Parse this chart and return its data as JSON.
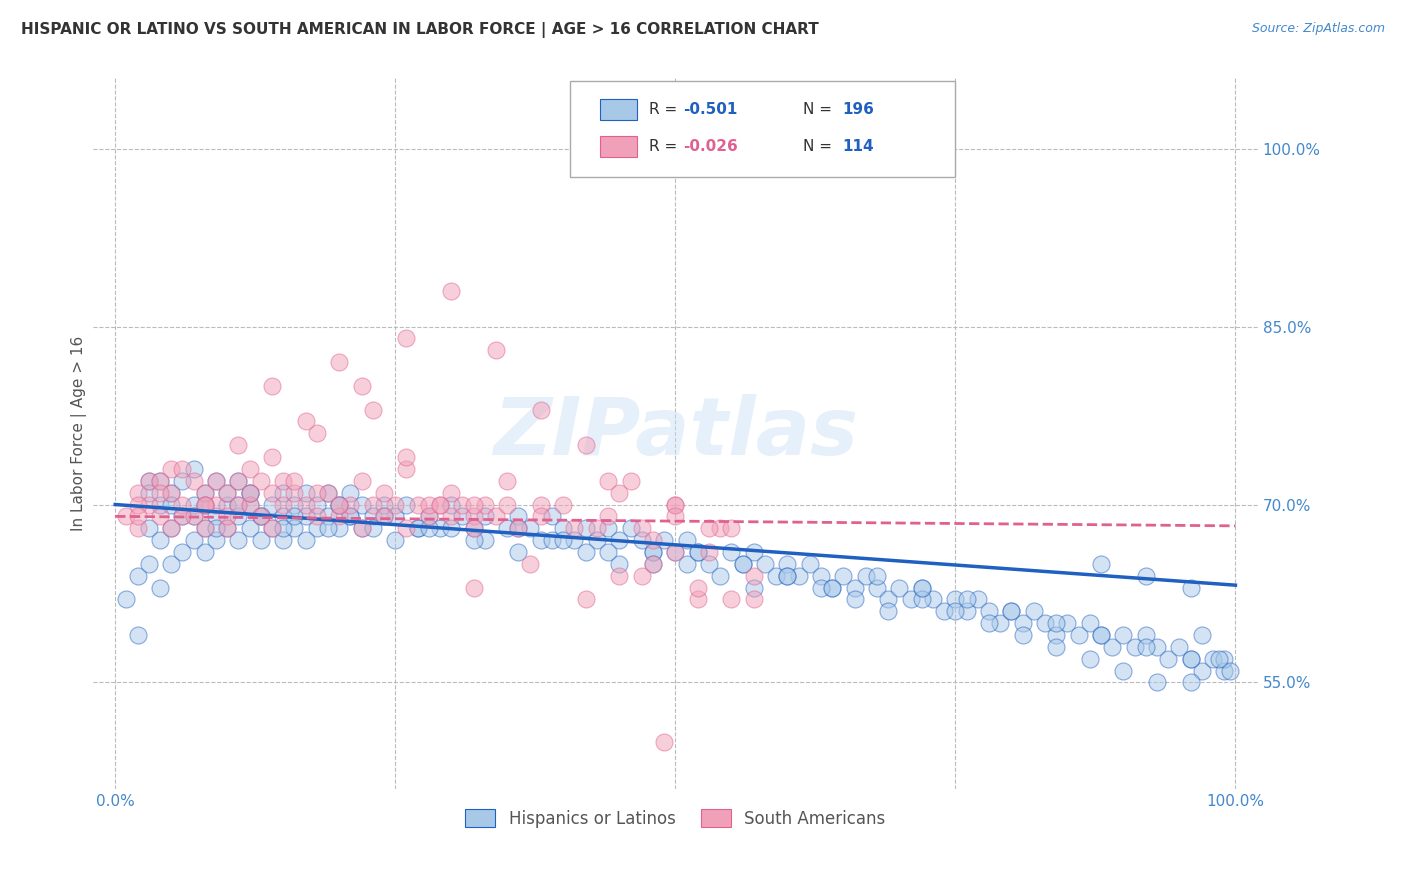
{
  "title": "HISPANIC OR LATINO VS SOUTH AMERICAN IN LABOR FORCE | AGE > 16 CORRELATION CHART",
  "source": "Source: ZipAtlas.com",
  "ylabel": "In Labor Force | Age > 16",
  "watermark": "ZIPatlas",
  "legend_blue_R_val": "-0.501",
  "legend_blue_N_val": "196",
  "legend_pink_R_val": "-0.026",
  "legend_pink_N_val": "114",
  "blue_label": "Hispanics or Latinos",
  "pink_label": "South Americans",
  "xlim": [
    -0.02,
    1.02
  ],
  "ylim": [
    0.46,
    1.06
  ],
  "ytick_labels_right": [
    "55.0%",
    "70.0%",
    "85.0%",
    "100.0%"
  ],
  "ytick_vals_right": [
    0.55,
    0.7,
    0.85,
    1.0
  ],
  "blue_color": "#A8C8E8",
  "blue_line_color": "#2060C0",
  "pink_color": "#F0A0B8",
  "pink_line_color": "#E06090",
  "bg_color": "#FFFFFF",
  "grid_color": "#BBBBBB",
  "title_color": "#333333",
  "axis_label_color": "#555555",
  "tick_color": "#4488CC",
  "blue_trend_y_start": 0.7,
  "blue_trend_y_end": 0.632,
  "pink_trend_y_start": 0.69,
  "pink_trend_y_end": 0.682,
  "blue_scatter_x": [
    0.01,
    0.02,
    0.02,
    0.03,
    0.03,
    0.03,
    0.04,
    0.04,
    0.04,
    0.05,
    0.05,
    0.05,
    0.06,
    0.06,
    0.06,
    0.07,
    0.07,
    0.07,
    0.08,
    0.08,
    0.08,
    0.09,
    0.09,
    0.09,
    0.1,
    0.1,
    0.1,
    0.11,
    0.11,
    0.11,
    0.12,
    0.12,
    0.12,
    0.13,
    0.13,
    0.14,
    0.14,
    0.15,
    0.15,
    0.15,
    0.16,
    0.16,
    0.17,
    0.17,
    0.18,
    0.18,
    0.19,
    0.19,
    0.2,
    0.2,
    0.21,
    0.21,
    0.22,
    0.22,
    0.23,
    0.24,
    0.25,
    0.26,
    0.27,
    0.28,
    0.29,
    0.3,
    0.31,
    0.32,
    0.33,
    0.35,
    0.36,
    0.37,
    0.38,
    0.39,
    0.4,
    0.41,
    0.42,
    0.43,
    0.44,
    0.45,
    0.46,
    0.47,
    0.48,
    0.49,
    0.5,
    0.51,
    0.52,
    0.53,
    0.55,
    0.56,
    0.57,
    0.58,
    0.59,
    0.6,
    0.61,
    0.62,
    0.63,
    0.64,
    0.65,
    0.66,
    0.67,
    0.68,
    0.69,
    0.7,
    0.71,
    0.72,
    0.73,
    0.74,
    0.75,
    0.76,
    0.77,
    0.78,
    0.79,
    0.8,
    0.81,
    0.82,
    0.83,
    0.84,
    0.85,
    0.86,
    0.87,
    0.88,
    0.89,
    0.9,
    0.91,
    0.92,
    0.93,
    0.94,
    0.95,
    0.96,
    0.97,
    0.98,
    0.99,
    0.99,
    0.03,
    0.05,
    0.07,
    0.09,
    0.11,
    0.13,
    0.15,
    0.17,
    0.19,
    0.21,
    0.23,
    0.25,
    0.27,
    0.3,
    0.33,
    0.36,
    0.39,
    0.42,
    0.45,
    0.48,
    0.51,
    0.54,
    0.57,
    0.6,
    0.63,
    0.66,
    0.69,
    0.72,
    0.75,
    0.78,
    0.81,
    0.84,
    0.87,
    0.9,
    0.93,
    0.96,
    0.04,
    0.08,
    0.12,
    0.16,
    0.2,
    0.24,
    0.28,
    0.32,
    0.36,
    0.4,
    0.44,
    0.48,
    0.52,
    0.56,
    0.6,
    0.64,
    0.68,
    0.72,
    0.76,
    0.8,
    0.84,
    0.88,
    0.92,
    0.96,
    0.995,
    0.985,
    0.97,
    0.96,
    0.92,
    0.88
  ],
  "blue_scatter_y": [
    0.62,
    0.59,
    0.64,
    0.65,
    0.68,
    0.72,
    0.63,
    0.67,
    0.7,
    0.65,
    0.68,
    0.71,
    0.66,
    0.69,
    0.72,
    0.67,
    0.7,
    0.73,
    0.68,
    0.71,
    0.66,
    0.69,
    0.72,
    0.67,
    0.7,
    0.68,
    0.71,
    0.69,
    0.72,
    0.67,
    0.7,
    0.68,
    0.71,
    0.69,
    0.67,
    0.7,
    0.68,
    0.71,
    0.69,
    0.67,
    0.7,
    0.68,
    0.71,
    0.69,
    0.7,
    0.68,
    0.69,
    0.71,
    0.68,
    0.7,
    0.69,
    0.71,
    0.68,
    0.7,
    0.69,
    0.7,
    0.69,
    0.7,
    0.68,
    0.69,
    0.68,
    0.7,
    0.69,
    0.68,
    0.69,
    0.68,
    0.69,
    0.68,
    0.67,
    0.69,
    0.68,
    0.67,
    0.68,
    0.67,
    0.68,
    0.67,
    0.68,
    0.67,
    0.66,
    0.67,
    0.66,
    0.67,
    0.66,
    0.65,
    0.66,
    0.65,
    0.66,
    0.65,
    0.64,
    0.65,
    0.64,
    0.65,
    0.64,
    0.63,
    0.64,
    0.63,
    0.64,
    0.63,
    0.62,
    0.63,
    0.62,
    0.63,
    0.62,
    0.61,
    0.62,
    0.61,
    0.62,
    0.61,
    0.6,
    0.61,
    0.6,
    0.61,
    0.6,
    0.59,
    0.6,
    0.59,
    0.6,
    0.59,
    0.58,
    0.59,
    0.58,
    0.59,
    0.58,
    0.57,
    0.58,
    0.57,
    0.56,
    0.57,
    0.56,
    0.57,
    0.71,
    0.7,
    0.69,
    0.68,
    0.7,
    0.69,
    0.68,
    0.67,
    0.68,
    0.69,
    0.68,
    0.67,
    0.68,
    0.68,
    0.67,
    0.68,
    0.67,
    0.66,
    0.65,
    0.66,
    0.65,
    0.64,
    0.63,
    0.64,
    0.63,
    0.62,
    0.61,
    0.62,
    0.61,
    0.6,
    0.59,
    0.58,
    0.57,
    0.56,
    0.55,
    0.55,
    0.72,
    0.7,
    0.71,
    0.69,
    0.7,
    0.69,
    0.68,
    0.67,
    0.66,
    0.67,
    0.66,
    0.65,
    0.66,
    0.65,
    0.64,
    0.63,
    0.64,
    0.63,
    0.62,
    0.61,
    0.6,
    0.59,
    0.58,
    0.57,
    0.56,
    0.57,
    0.59,
    0.63,
    0.64,
    0.65
  ],
  "pink_scatter_x": [
    0.01,
    0.02,
    0.02,
    0.03,
    0.03,
    0.04,
    0.04,
    0.05,
    0.05,
    0.06,
    0.06,
    0.07,
    0.07,
    0.08,
    0.08,
    0.09,
    0.09,
    0.1,
    0.1,
    0.11,
    0.11,
    0.12,
    0.12,
    0.13,
    0.13,
    0.14,
    0.14,
    0.15,
    0.15,
    0.16,
    0.17,
    0.18,
    0.19,
    0.2,
    0.21,
    0.22,
    0.23,
    0.24,
    0.25,
    0.26,
    0.27,
    0.28,
    0.29,
    0.3,
    0.31,
    0.32,
    0.33,
    0.34,
    0.35,
    0.36,
    0.02,
    0.04,
    0.06,
    0.08,
    0.1,
    0.12,
    0.14,
    0.16,
    0.18,
    0.2,
    0.22,
    0.24,
    0.26,
    0.28,
    0.3,
    0.32,
    0.18,
    0.22,
    0.26,
    0.3,
    0.34,
    0.38,
    0.42,
    0.46,
    0.5,
    0.54,
    0.02,
    0.05,
    0.08,
    0.11,
    0.14,
    0.17,
    0.2,
    0.23,
    0.26,
    0.29,
    0.32,
    0.35,
    0.38,
    0.41,
    0.44,
    0.47,
    0.5,
    0.53,
    0.45,
    0.5,
    0.55,
    0.57,
    0.48,
    0.52,
    0.32,
    0.37,
    0.42,
    0.47,
    0.52,
    0.57,
    0.4,
    0.45,
    0.5,
    0.55,
    0.38,
    0.43,
    0.48,
    0.53,
    0.44,
    0.49
  ],
  "pink_scatter_y": [
    0.69,
    0.68,
    0.71,
    0.7,
    0.72,
    0.69,
    0.72,
    0.71,
    0.73,
    0.7,
    0.73,
    0.72,
    0.69,
    0.71,
    0.68,
    0.72,
    0.7,
    0.71,
    0.68,
    0.72,
    0.7,
    0.73,
    0.7,
    0.72,
    0.69,
    0.71,
    0.68,
    0.7,
    0.72,
    0.71,
    0.7,
    0.69,
    0.71,
    0.69,
    0.7,
    0.68,
    0.7,
    0.69,
    0.7,
    0.68,
    0.7,
    0.69,
    0.7,
    0.69,
    0.7,
    0.69,
    0.7,
    0.69,
    0.7,
    0.68,
    0.7,
    0.71,
    0.69,
    0.7,
    0.69,
    0.71,
    0.74,
    0.72,
    0.71,
    0.7,
    0.72,
    0.71,
    0.73,
    0.7,
    0.71,
    0.7,
    0.76,
    0.8,
    0.84,
    0.88,
    0.83,
    0.78,
    0.75,
    0.72,
    0.7,
    0.68,
    0.69,
    0.68,
    0.7,
    0.75,
    0.8,
    0.77,
    0.82,
    0.78,
    0.74,
    0.7,
    0.68,
    0.72,
    0.7,
    0.68,
    0.72,
    0.68,
    0.7,
    0.68,
    0.64,
    0.66,
    0.62,
    0.64,
    0.65,
    0.62,
    0.63,
    0.65,
    0.62,
    0.64,
    0.63,
    0.62,
    0.7,
    0.71,
    0.69,
    0.68,
    0.69,
    0.68,
    0.67,
    0.66,
    0.69,
    0.5
  ]
}
